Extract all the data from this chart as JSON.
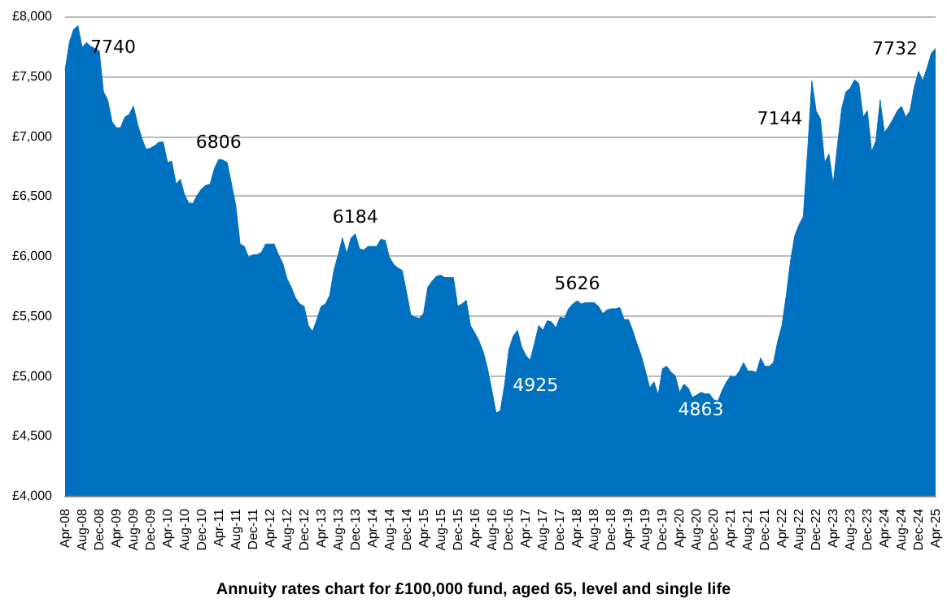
{
  "chart_data": {
    "type": "area",
    "title": "Annuity rates chart for £100,000 fund, aged 65, level and single life",
    "categories": [
      "Apr-08",
      null,
      null,
      null,
      "Aug-08",
      null,
      null,
      null,
      "Dec-08",
      null,
      null,
      null,
      "Apr-09",
      null,
      null,
      null,
      "Aug-09",
      null,
      null,
      null,
      "Dec-09",
      null,
      null,
      null,
      "Apr-10",
      null,
      null,
      null,
      "Aug-10",
      null,
      null,
      null,
      "Dec-10",
      null,
      null,
      null,
      "Apr-11",
      null,
      null,
      null,
      "Aug-11",
      null,
      null,
      null,
      "Dec-11",
      null,
      null,
      null,
      "Apr-12",
      null,
      null,
      null,
      "Aug-12",
      null,
      null,
      null,
      "Dec-12",
      null,
      null,
      null,
      "Apr-13",
      null,
      null,
      null,
      "Aug-13",
      null,
      null,
      null,
      "Dec-13",
      null,
      null,
      null,
      "Apr-14",
      null,
      null,
      null,
      "Aug-14",
      null,
      null,
      null,
      "Dec-14",
      null,
      null,
      null,
      "Apr-15",
      null,
      null,
      null,
      "Aug-15",
      null,
      null,
      null,
      "Dec-15",
      null,
      null,
      null,
      "Apr-16",
      null,
      null,
      null,
      "Aug-16",
      null,
      null,
      null,
      "Dec-16",
      null,
      null,
      null,
      "Apr-17",
      null,
      null,
      null,
      "Aug-17",
      null,
      null,
      null,
      "Dec-17",
      null,
      null,
      null,
      "Apr-18",
      null,
      null,
      null,
      "Aug-18",
      null,
      null,
      null,
      "Dec-18",
      null,
      null,
      null,
      "Apr-19",
      null,
      null,
      null,
      "Aug-19",
      null,
      null,
      null,
      "Dec-19",
      null,
      null,
      null,
      "Apr-20",
      null,
      null,
      null,
      "Aug-20",
      null,
      null,
      null,
      "Dec-20",
      null,
      null,
      null,
      "Apr-21",
      null,
      null,
      null,
      "Aug-21",
      null,
      null,
      null,
      "Dec-21",
      null,
      null,
      null,
      "Apr-22",
      null,
      null,
      null,
      "Aug-22",
      null,
      null,
      null,
      "Dec-22",
      null,
      null,
      null,
      "Apr-23",
      null,
      null,
      null,
      "Aug-23",
      null,
      null,
      null,
      "Dec-23",
      null,
      null,
      null,
      "Apr-24",
      null,
      null,
      null,
      "Aug-24",
      null,
      null,
      null,
      "Dec-24",
      null,
      null,
      null,
      "Apr-25"
    ],
    "values": [
      7550,
      7780,
      7890,
      7920,
      7740,
      7780,
      7750,
      7730,
      7710,
      7370,
      7300,
      7120,
      7070,
      7070,
      7160,
      7180,
      7250,
      7100,
      6980,
      6890,
      6900,
      6920,
      6950,
      6950,
      6780,
      6790,
      6600,
      6640,
      6510,
      6440,
      6440,
      6510,
      6560,
      6590,
      6600,
      6730,
      6806,
      6800,
      6780,
      6600,
      6420,
      6100,
      6080,
      5990,
      6010,
      6010,
      6030,
      6100,
      6100,
      6100,
      6010,
      5940,
      5810,
      5740,
      5650,
      5600,
      5580,
      5420,
      5370,
      5470,
      5580,
      5600,
      5670,
      5880,
      6010,
      6150,
      6020,
      6150,
      6184,
      6060,
      6050,
      6080,
      6080,
      6080,
      6140,
      6130,
      5990,
      5930,
      5900,
      5880,
      5700,
      5510,
      5490,
      5480,
      5520,
      5740,
      5790,
      5830,
      5840,
      5820,
      5820,
      5820,
      5580,
      5600,
      5630,
      5420,
      5360,
      5290,
      5200,
      5060,
      4880,
      4690,
      4710,
      4925,
      5220,
      5330,
      5380,
      5240,
      5170,
      5130,
      5270,
      5420,
      5380,
      5460,
      5450,
      5400,
      5490,
      5480,
      5560,
      5600,
      5626,
      5600,
      5610,
      5610,
      5610,
      5580,
      5520,
      5550,
      5560,
      5560,
      5570,
      5470,
      5470,
      5380,
      5270,
      5170,
      5040,
      4900,
      4950,
      4840,
      5060,
      5080,
      5030,
      5000,
      4860,
      4930,
      4900,
      4820,
      4840,
      4863,
      4850,
      4850,
      4800,
      4790,
      4880,
      4950,
      5000,
      4990,
      5040,
      5110,
      5040,
      5040,
      5030,
      5150,
      5080,
      5080,
      5110,
      5290,
      5420,
      5670,
      5960,
      6170,
      6260,
      6330,
      6870,
      7460,
      7210,
      7144,
      6780,
      6850,
      6600,
      6920,
      7230,
      7370,
      7400,
      7470,
      7440,
      7160,
      7210,
      6870,
      6960,
      7300,
      7030,
      7080,
      7140,
      7210,
      7250,
      7160,
      7210,
      7410,
      7540,
      7460,
      7570,
      7690,
      7732
    ],
    "value_labels": [
      null,
      null,
      null,
      null,
      "7740",
      null,
      null,
      null,
      null,
      null,
      null,
      null,
      null,
      null,
      null,
      null,
      null,
      null,
      null,
      null,
      null,
      null,
      null,
      null,
      null,
      null,
      null,
      null,
      null,
      null,
      null,
      null,
      null,
      null,
      null,
      null,
      "6806",
      null,
      null,
      null,
      null,
      null,
      null,
      null,
      null,
      null,
      null,
      null,
      null,
      null,
      null,
      null,
      null,
      null,
      null,
      null,
      null,
      null,
      null,
      null,
      null,
      null,
      null,
      null,
      null,
      null,
      null,
      null,
      "6184",
      null,
      null,
      null,
      null,
      null,
      null,
      null,
      null,
      null,
      null,
      null,
      null,
      null,
      null,
      null,
      null,
      null,
      null,
      null,
      null,
      null,
      null,
      null,
      null,
      null,
      null,
      null,
      null,
      null,
      null,
      null,
      null,
      null,
      null,
      "4925",
      null,
      null,
      null,
      null,
      null,
      null,
      null,
      null,
      null,
      null,
      null,
      null,
      null,
      null,
      null,
      null,
      "5626",
      null,
      null,
      null,
      null,
      null,
      null,
      null,
      null,
      null,
      null,
      null,
      null,
      null,
      null,
      null,
      null,
      null,
      null,
      null,
      null,
      null,
      null,
      null,
      null,
      null,
      null,
      null,
      null,
      "4863",
      null,
      null,
      null,
      null,
      null,
      null,
      null,
      null,
      null,
      null,
      null,
      null,
      null,
      null,
      null,
      null,
      null,
      null,
      null,
      null,
      null,
      null,
      null,
      null,
      null,
      null,
      null,
      "7144",
      null,
      null,
      null,
      null,
      null,
      null,
      null,
      null,
      null,
      null,
      null,
      null,
      null,
      null,
      null,
      null,
      null,
      null,
      null,
      null,
      null,
      null,
      null,
      null,
      null,
      null,
      "7732"
    ],
    "color": "#0070c0",
    "ylim": [
      4000,
      8000
    ],
    "yticks": [
      {
        "value": 4000,
        "label": "£4,000"
      },
      {
        "value": 4500,
        "label": "£4,500"
      },
      {
        "value": 5000,
        "label": "£5,000"
      },
      {
        "value": 5500,
        "label": "£5,500"
      },
      {
        "value": 6000,
        "label": "£6,000"
      },
      {
        "value": 6500,
        "label": "£6,500"
      },
      {
        "value": 7000,
        "label": "£7,000"
      },
      {
        "value": 7500,
        "label": "£7,500"
      },
      {
        "value": 8000,
        "label": "£8,000"
      }
    ],
    "grid": "y"
  }
}
